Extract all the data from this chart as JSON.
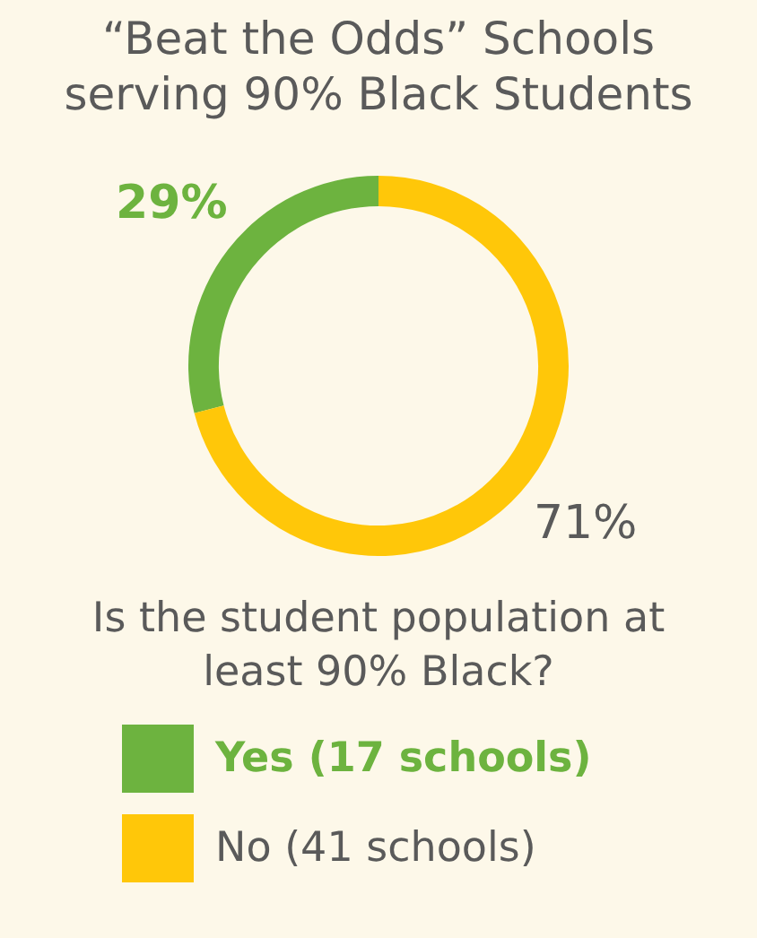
{
  "chart_data": {
    "type": "donut",
    "title": "“Beat the Odds” Schools serving 90% Black Students",
    "legend_title": "Is the student population at least 90% Black?",
    "categories": [
      "Yes (17 schools)",
      "No (41 schools)"
    ],
    "values": [
      29,
      71
    ],
    "colors": [
      "#6db33f",
      "#ffc709"
    ],
    "value_labels": [
      "29%",
      "71%"
    ],
    "legend": "bottom"
  }
}
